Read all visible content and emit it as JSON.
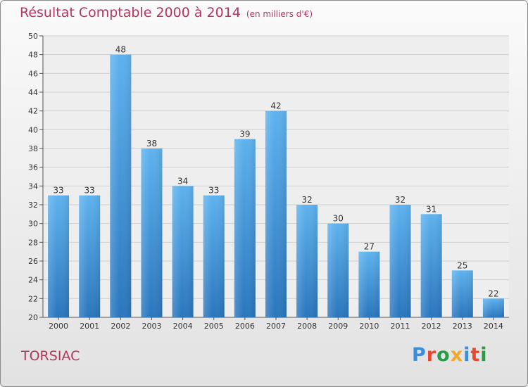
{
  "chart_data": {
    "type": "bar",
    "title": "Résultat Comptable 2000 à 2014",
    "subtitle": "(en milliers d'€)",
    "categories": [
      "2000",
      "2001",
      "2002",
      "2003",
      "2004",
      "2005",
      "2006",
      "2007",
      "2008",
      "2009",
      "2010",
      "2011",
      "2012",
      "2013",
      "2014"
    ],
    "values": [
      33,
      33,
      48,
      38,
      34,
      33,
      39,
      42,
      32,
      30,
      27,
      32,
      31,
      25,
      22
    ],
    "ylim": [
      20,
      50
    ],
    "ytick_step": 2,
    "xlabel": "",
    "ylabel": "",
    "grid": true,
    "bar_color": "#3f95d9"
  },
  "commune": "TORSIAC",
  "logo": {
    "text": "Proxiti",
    "letter_colors": [
      "#3a8fd8",
      "#e8492f",
      "#2a9c45",
      "#f2a82a",
      "#3a8fd8",
      "#e8492f",
      "#2a9c45"
    ]
  }
}
